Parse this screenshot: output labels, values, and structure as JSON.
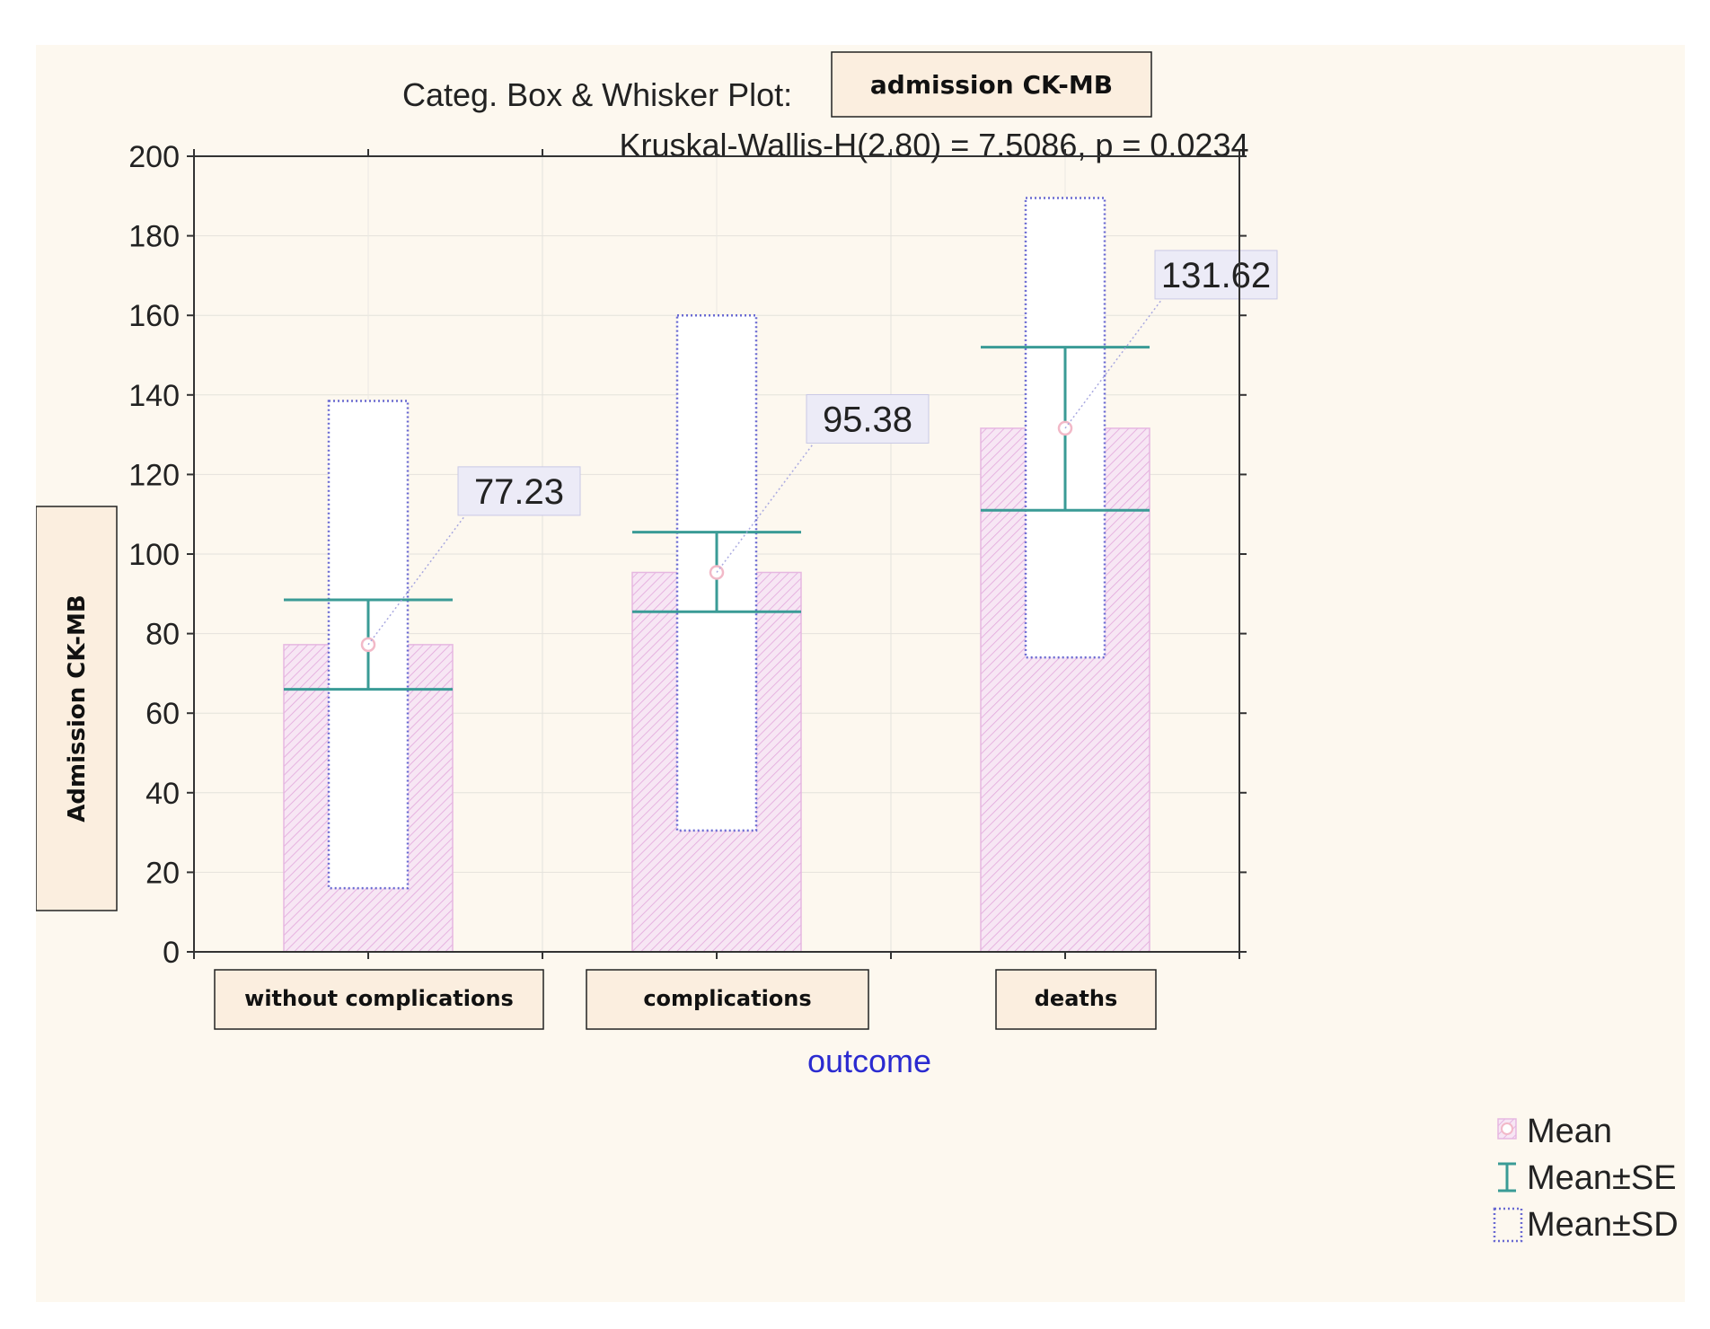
{
  "chart_data": {
    "type": "bar",
    "title_prefix": "Categ. Box & Whisker Plot:",
    "title_variable": "admission CK-MB",
    "subtitle": "Kruskal-Wallis-H(2.80) = 7.5086, p = 0.0234",
    "xlabel": "outcome",
    "ylabel": "Admission CK-MB",
    "categories": [
      "without complications",
      "complications",
      "deaths"
    ],
    "ylim": [
      0,
      200
    ],
    "yticks": [
      0,
      20,
      40,
      60,
      80,
      100,
      120,
      140,
      160,
      180,
      200
    ],
    "grid": true,
    "legend_position": "bottom-right",
    "series": [
      {
        "name": "Mean",
        "values": [
          77.23,
          95.38,
          131.62
        ]
      },
      {
        "name": "Mean±SE",
        "lower": [
          66,
          85.5,
          111
        ],
        "upper": [
          88.5,
          105.5,
          152
        ]
      },
      {
        "name": "Mean±SD",
        "lower": [
          16,
          30.5,
          74
        ],
        "upper": [
          138.5,
          160,
          189.5
        ]
      }
    ],
    "data_labels": [
      "77.23",
      "95.38",
      "131.62"
    ],
    "colors": {
      "background": "#fdf8ef",
      "bar_fill": "#f7e6f4",
      "bar_edge": "#e6b7e1",
      "hatch": "#e2a6db",
      "se": "#3a9b96",
      "sd": "#6a6ad2",
      "mean_marker": "#f2b9c8",
      "label_box": "#ecebf7",
      "category_box": "#fbeedf",
      "xlabel_color": "#2a2ad0"
    }
  }
}
